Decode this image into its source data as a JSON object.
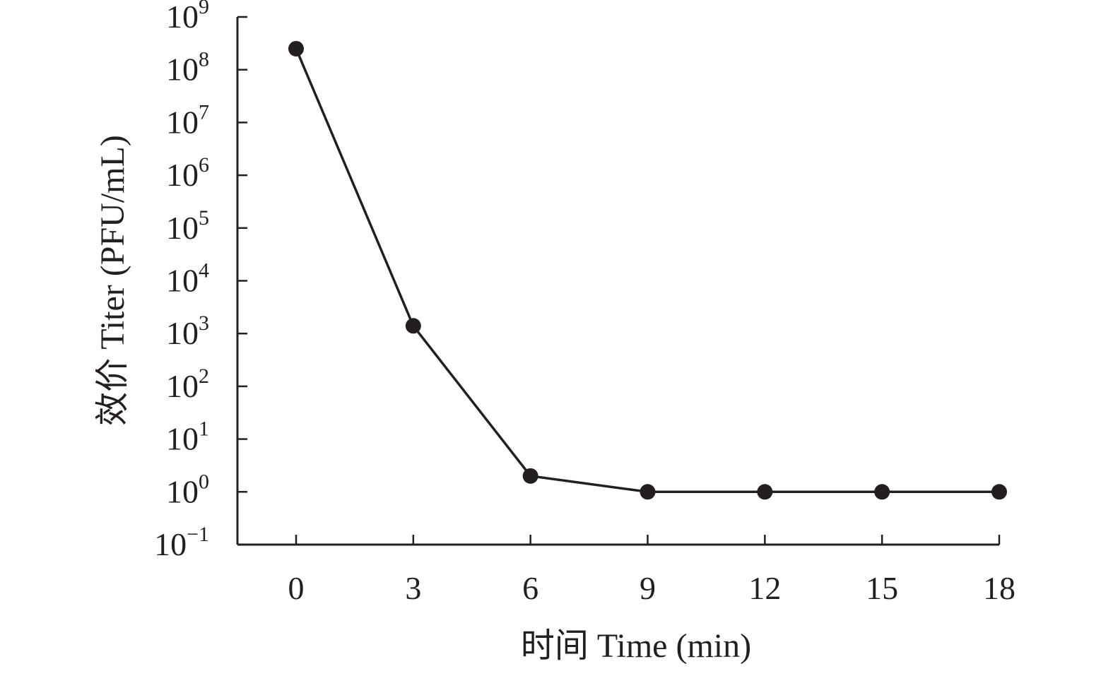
{
  "chart_data": {
    "type": "line",
    "title": "",
    "xlabel": "时间 Time (min)",
    "ylabel": "效价 Titer (PFU/mL)",
    "y_scale": "log10",
    "grid": false,
    "xlim": [
      -1.5,
      18
    ],
    "ylim": [
      0.1,
      1000000000
    ],
    "x_ticks": [
      {
        "value": 0,
        "label": "0"
      },
      {
        "value": 3,
        "label": "3"
      },
      {
        "value": 6,
        "label": "6"
      },
      {
        "value": 9,
        "label": "9"
      },
      {
        "value": 12,
        "label": "12"
      },
      {
        "value": 15,
        "label": "15"
      },
      {
        "value": 18,
        "label": "18"
      }
    ],
    "y_ticks": [
      {
        "value": 1000000000,
        "base": "10",
        "exponent": "9"
      },
      {
        "value": 100000000,
        "base": "10",
        "exponent": "8"
      },
      {
        "value": 10000000,
        "base": "10",
        "exponent": "7"
      },
      {
        "value": 1000000,
        "base": "10",
        "exponent": "6"
      },
      {
        "value": 100000,
        "base": "10",
        "exponent": "5"
      },
      {
        "value": 10000,
        "base": "10",
        "exponent": "4"
      },
      {
        "value": 1000,
        "base": "10",
        "exponent": "3"
      },
      {
        "value": 100,
        "base": "10",
        "exponent": "2"
      },
      {
        "value": 10,
        "base": "10",
        "exponent": "1"
      },
      {
        "value": 1,
        "base": "10",
        "exponent": "0"
      },
      {
        "value": 0.1,
        "base": "10",
        "exponent": "−1"
      }
    ],
    "series": [
      {
        "x": [
          0,
          3,
          6,
          9,
          12,
          15,
          18
        ],
        "y": [
          250000000,
          1400,
          2,
          1,
          1,
          1,
          1
        ]
      }
    ],
    "colors": {
      "line": "#231f20",
      "marker": "#231f20",
      "axis": "#231f20",
      "text": "#231f20"
    }
  }
}
